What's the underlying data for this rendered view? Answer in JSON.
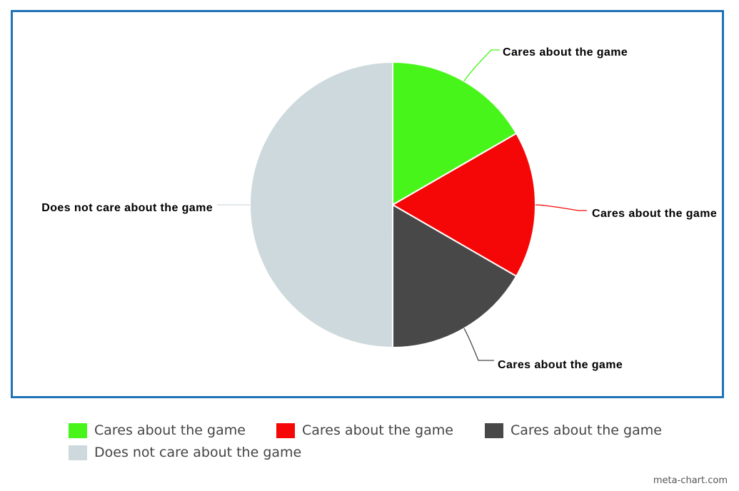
{
  "chart_data": {
    "type": "pie",
    "title": "",
    "categories": [
      "Cares about the game",
      "Cares about the game",
      "Cares about the game",
      "Does not care about the game"
    ],
    "values": [
      16.67,
      16.67,
      16.67,
      50
    ],
    "colors": [
      "#48f51b",
      "#f50707",
      "#484848",
      "#cdd9dc"
    ],
    "legend_placement": "bottom"
  },
  "legend": {
    "items": [
      {
        "label": "Cares about the game",
        "color": "#48f51b"
      },
      {
        "label": "Cares about the game",
        "color": "#f50707"
      },
      {
        "label": "Cares about the game",
        "color": "#484848"
      },
      {
        "label": "Does not care about the game",
        "color": "#cdd9dc"
      }
    ]
  },
  "credit": "meta-chart.com",
  "frame_color": "#1f73b7"
}
